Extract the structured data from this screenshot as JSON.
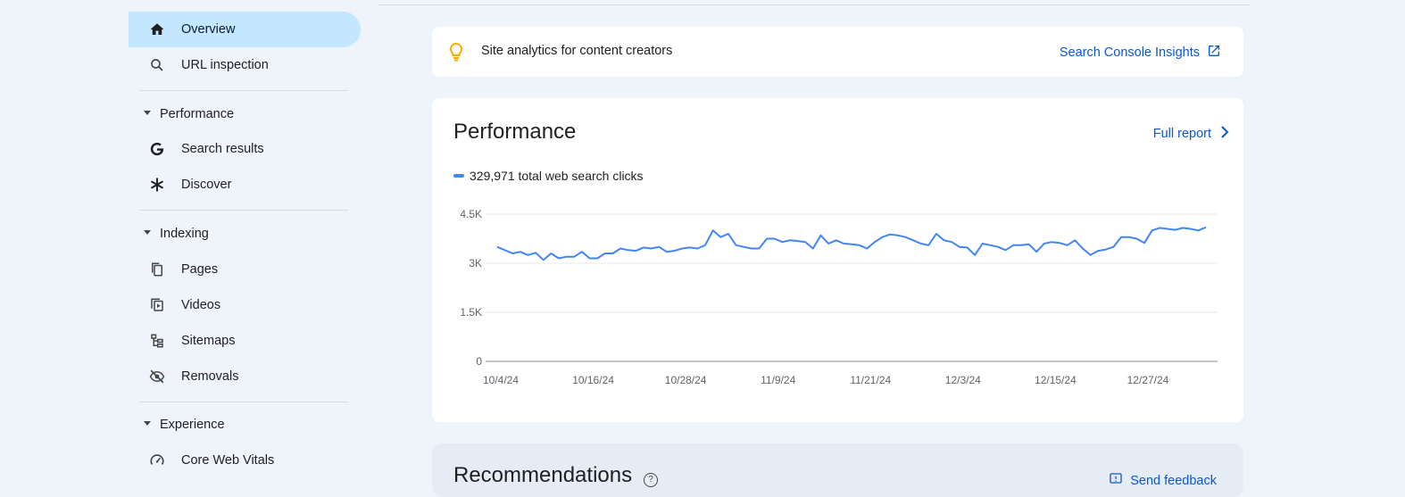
{
  "sidebar": {
    "overview": {
      "label": "Overview",
      "icon": "home-icon"
    },
    "url_inspection": {
      "label": "URL inspection",
      "icon": "search-icon"
    },
    "sections": {
      "performance": {
        "label": "Performance",
        "items": {
          "search_results": "Search results",
          "discover": "Discover"
        }
      },
      "indexing": {
        "label": "Indexing",
        "items": {
          "pages": "Pages",
          "videos": "Videos",
          "sitemaps": "Sitemaps",
          "removals": "Removals"
        }
      },
      "experience": {
        "label": "Experience",
        "items": {
          "core_web_vitals": "Core Web Vitals"
        }
      }
    }
  },
  "insights": {
    "text": "Site analytics for content creators",
    "link_label": "Search Console Insights"
  },
  "performance": {
    "title": "Performance",
    "full_report_label": "Full report",
    "legend": "329,971 total web search clicks"
  },
  "recommendations": {
    "title": "Recommendations",
    "feedback_label": "Send feedback"
  },
  "colors": {
    "accent": "#0b57d0",
    "series": "#4285f4",
    "active_nav": "#c2e7ff",
    "bulb": "#f9ab00"
  },
  "chart_data": {
    "type": "line",
    "ylim": [
      0,
      4500
    ],
    "y_ticks": [
      {
        "value": 0,
        "label": "0"
      },
      {
        "value": 1500,
        "label": "1.5K"
      },
      {
        "value": 3000,
        "label": "3K"
      },
      {
        "value": 4500,
        "label": "4.5K"
      }
    ],
    "x_ticks": [
      {
        "index": 0,
        "label": "10/4/24"
      },
      {
        "index": 12,
        "label": "10/16/24"
      },
      {
        "index": 24,
        "label": "10/28/24"
      },
      {
        "index": 36,
        "label": "11/9/24"
      },
      {
        "index": 48,
        "label": "11/21/24"
      },
      {
        "index": 60,
        "label": "12/3/24"
      },
      {
        "index": 72,
        "label": "12/15/24"
      },
      {
        "index": 84,
        "label": "12/27/24"
      }
    ],
    "series": [
      {
        "values": [
          3500,
          3400,
          3300,
          3350,
          3250,
          3320,
          3100,
          3300,
          3150,
          3200,
          3200,
          3350,
          3150,
          3150,
          3300,
          3300,
          3450,
          3400,
          3380,
          3480,
          3450,
          3500,
          3350,
          3380,
          3450,
          3480,
          3450,
          3550,
          4000,
          3800,
          3900,
          3550,
          3500,
          3450,
          3450,
          3750,
          3750,
          3650,
          3700,
          3680,
          3650,
          3450,
          3850,
          3600,
          3700,
          3600,
          3580,
          3550,
          3450,
          3650,
          3800,
          3880,
          3850,
          3800,
          3700,
          3600,
          3550,
          3900,
          3700,
          3650,
          3500,
          3480,
          3250,
          3600,
          3550,
          3500,
          3400,
          3550,
          3550,
          3580,
          3350,
          3600,
          3650,
          3620,
          3550,
          3700,
          3450,
          3250,
          3380,
          3420,
          3500,
          3800,
          3800,
          3750,
          3620,
          4000,
          4080,
          4050,
          4020,
          4080,
          4050,
          4000,
          4100
        ]
      }
    ]
  }
}
